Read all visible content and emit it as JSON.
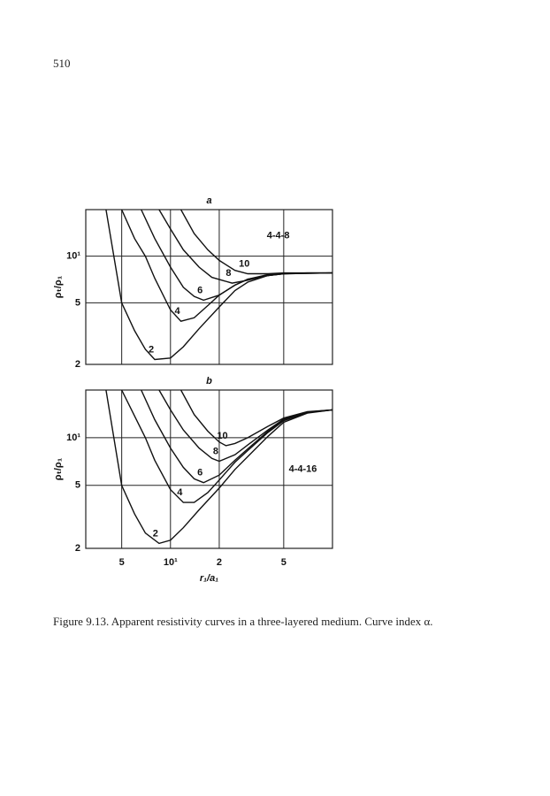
{
  "page_number": "510",
  "chart_data": [
    {
      "type": "line",
      "title": "a",
      "annotation": "4-4-8",
      "xscale": "log",
      "yscale": "log",
      "xlim": [
        3,
        100
      ],
      "ylim": [
        2,
        20
      ],
      "xticks": [
        5,
        10,
        20,
        50
      ],
      "xtick_labels": false,
      "yticks": [
        2,
        5,
        {
          "value": 10,
          "label": "10¹"
        }
      ],
      "ylabel": "ρₜ/ρ₁",
      "grid": true,
      "color": "#111111",
      "series": [
        {
          "name": "2",
          "x": [
            4,
            5,
            6,
            7,
            8,
            10,
            12,
            15,
            20,
            25,
            30,
            40,
            50,
            70,
            100
          ],
          "values": [
            20,
            5,
            3.3,
            2.5,
            2.15,
            2.2,
            2.6,
            3.4,
            4.7,
            6.0,
            6.8,
            7.5,
            7.7,
            7.8,
            7.8
          ]
        },
        {
          "name": "4",
          "x": [
            5,
            6,
            7,
            8,
            10,
            11.6,
            14,
            17,
            20,
            25,
            30,
            40,
            50,
            100
          ],
          "values": [
            20,
            13,
            10,
            7.2,
            4.5,
            3.8,
            4.0,
            4.8,
            5.6,
            6.5,
            7.1,
            7.5,
            7.7,
            7.8
          ]
        },
        {
          "name": "6",
          "x": [
            6.6,
            8,
            10,
            12,
            14,
            16,
            20,
            25,
            30,
            40,
            50,
            100
          ],
          "values": [
            20,
            13,
            8.5,
            6.3,
            5.5,
            5.2,
            5.6,
            6.5,
            7.1,
            7.6,
            7.75,
            7.8
          ]
        },
        {
          "name": "8",
          "x": [
            8.5,
            10,
            12,
            15,
            18,
            24,
            30,
            40,
            50,
            100
          ],
          "values": [
            20,
            15,
            11,
            8.5,
            7.3,
            6.7,
            7.0,
            7.5,
            7.7,
            7.8
          ]
        },
        {
          "name": "10",
          "x": [
            11.6,
            14,
            17,
            20,
            25,
            30,
            40,
            50,
            100
          ],
          "values": [
            20,
            14,
            11,
            9.4,
            8.1,
            7.7,
            7.7,
            7.8,
            7.8
          ]
        }
      ]
    },
    {
      "type": "line",
      "title": "b",
      "annotation": "4-4-16",
      "xscale": "log",
      "yscale": "log",
      "xlim": [
        3,
        100
      ],
      "ylim": [
        2,
        20
      ],
      "xticks": [
        5,
        {
          "value": 10,
          "label": "10¹"
        },
        {
          "value": 20,
          "label": "2"
        },
        {
          "value": 50,
          "label": "5"
        }
      ],
      "xtick_labels": true,
      "yticks": [
        2,
        5,
        {
          "value": 10,
          "label": "10¹"
        }
      ],
      "xlabel": "r₁/a₁",
      "ylabel": "ρₜ/ρ₁",
      "grid": true,
      "color": "#111111",
      "series": [
        {
          "name": "2",
          "x": [
            4,
            5,
            6,
            7,
            8.5,
            10,
            12,
            15,
            20,
            25,
            30,
            40,
            50,
            70,
            100
          ],
          "values": [
            20,
            5,
            3.3,
            2.5,
            2.15,
            2.25,
            2.7,
            3.5,
            4.8,
            6.3,
            7.6,
            10.2,
            12.5,
            14.3,
            15
          ]
        },
        {
          "name": "4",
          "x": [
            5,
            7,
            8,
            10,
            12,
            14,
            17,
            20,
            25,
            30,
            40,
            50,
            70,
            100
          ],
          "values": [
            20,
            10,
            7.2,
            4.7,
            3.9,
            3.9,
            4.5,
            5.4,
            7.0,
            8.3,
            10.8,
            12.8,
            14.4,
            15
          ]
        },
        {
          "name": "6",
          "x": [
            6.6,
            8,
            10,
            12,
            14,
            16,
            20,
            25,
            30,
            40,
            50,
            70,
            100
          ],
          "values": [
            20,
            13,
            8.6,
            6.5,
            5.5,
            5.2,
            5.8,
            7.2,
            8.5,
            11,
            13,
            14.5,
            15
          ]
        },
        {
          "name": "8",
          "x": [
            8.5,
            10,
            12,
            15,
            18,
            20,
            25,
            30,
            40,
            50,
            70,
            100
          ],
          "values": [
            20,
            15,
            11.2,
            8.6,
            7.4,
            7.1,
            7.8,
            9.0,
            11.2,
            13.1,
            14.5,
            15
          ]
        },
        {
          "name": "10",
          "x": [
            11.6,
            14,
            17,
            20,
            22,
            25,
            30,
            40,
            50,
            70,
            100
          ],
          "values": [
            20,
            14,
            11,
            9.4,
            8.9,
            9.2,
            10,
            11.8,
            13.3,
            14.6,
            15
          ]
        }
      ]
    }
  ],
  "caption": "Figure 9.13. Apparent resistivity curves in a three-layered medium. Curve index α."
}
